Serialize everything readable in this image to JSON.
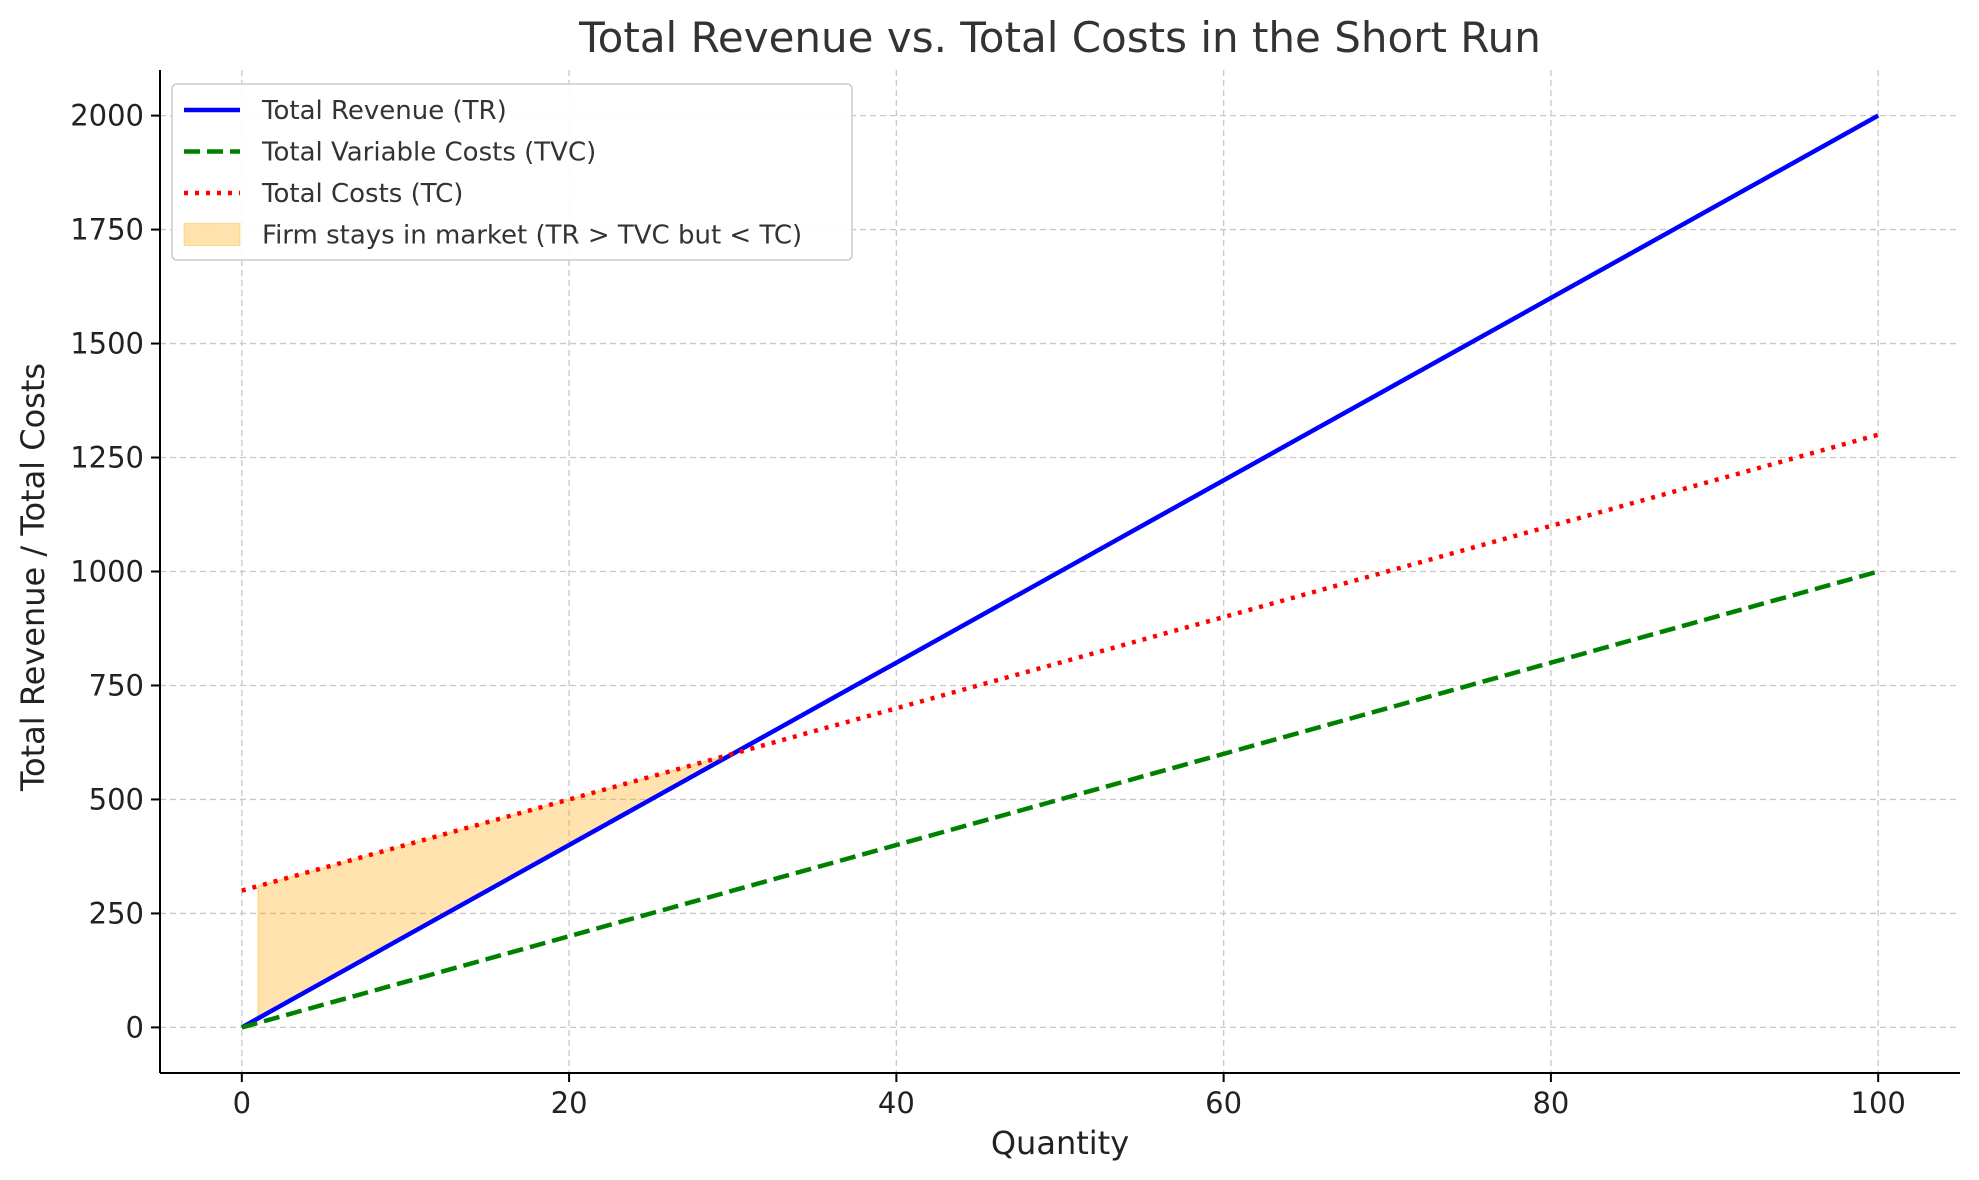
{
  "chart_data": {
    "type": "line",
    "title": "Total Revenue vs. Total Costs in the Short Run",
    "xlabel": "Quantity",
    "ylabel": "Total Revenue / Total Costs",
    "xlim": [
      -5,
      105
    ],
    "ylim": [
      -100,
      2100
    ],
    "xticks": [
      0,
      20,
      40,
      60,
      80,
      100
    ],
    "yticks": [
      0,
      250,
      500,
      750,
      1000,
      1250,
      1500,
      1750,
      2000
    ],
    "grid": true,
    "legend_position": "top-left",
    "x": [
      0,
      100
    ],
    "series": [
      {
        "name": "Total Revenue (TR)",
        "values": [
          0,
          2000
        ],
        "color": "#0000ff",
        "style": "solid"
      },
      {
        "name": "Total Variable Costs (TVC)",
        "values": [
          0,
          1000
        ],
        "color": "#008000",
        "style": "dashed"
      },
      {
        "name": "Total Costs (TC)",
        "values": [
          300,
          1300
        ],
        "color": "#ff0000",
        "style": "dotted"
      }
    ],
    "fill": {
      "name": "Firm stays in market (TR > TVC but < TC)",
      "color": "#ffa500",
      "x_start": 1,
      "x_end": 30,
      "upper_series": "Total Costs (TC)",
      "lower_series": "Total Revenue (TR)"
    }
  }
}
